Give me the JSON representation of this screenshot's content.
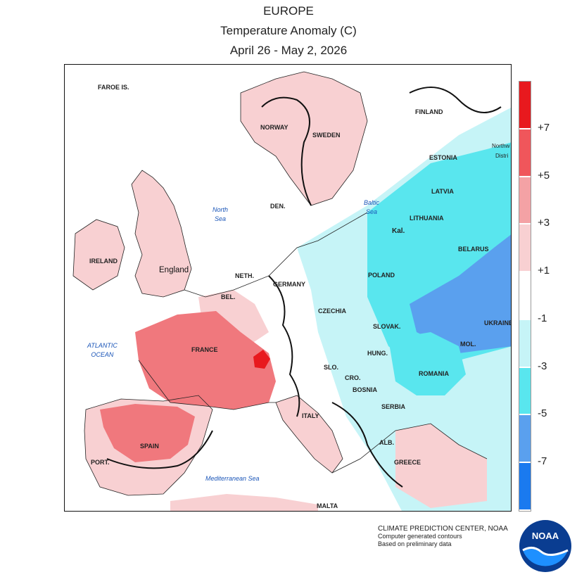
{
  "header": {
    "region": "EUROPE",
    "variable": "Temperature Anomaly (C)",
    "period": "April 26 - May 2, 2026"
  },
  "map": {
    "country_labels": [
      {
        "id": "faroe",
        "text": "FAROE IS."
      },
      {
        "id": "norway",
        "text": "NORWAY"
      },
      {
        "id": "sweden",
        "text": "SWEDEN"
      },
      {
        "id": "finland",
        "text": "FINLAND"
      },
      {
        "id": "estonia",
        "text": "ESTONIA"
      },
      {
        "id": "nw-district",
        "text": "Northw"
      },
      {
        "id": "nw-district2",
        "text": "Distri"
      },
      {
        "id": "latvia",
        "text": "LATVIA"
      },
      {
        "id": "lithuania",
        "text": "LITHUANIA"
      },
      {
        "id": "kal",
        "text": "Kal."
      },
      {
        "id": "belarus",
        "text": "BELARUS"
      },
      {
        "id": "den",
        "text": "DEN."
      },
      {
        "id": "ireland",
        "text": "IRELAND"
      },
      {
        "id": "england",
        "text": "England"
      },
      {
        "id": "neth",
        "text": "NETH."
      },
      {
        "id": "bel",
        "text": "BEL."
      },
      {
        "id": "germany",
        "text": "GERMANY"
      },
      {
        "id": "poland",
        "text": "POLAND"
      },
      {
        "id": "czechia",
        "text": "CZECHIA"
      },
      {
        "id": "slovak",
        "text": "SLOVAK."
      },
      {
        "id": "ukraine",
        "text": "UKRAINE"
      },
      {
        "id": "france",
        "text": "FRANCE"
      },
      {
        "id": "hung",
        "text": "HUNG."
      },
      {
        "id": "mol",
        "text": "MOL."
      },
      {
        "id": "romania",
        "text": "ROMANIA"
      },
      {
        "id": "slo",
        "text": "SLO."
      },
      {
        "id": "cro",
        "text": "CRO."
      },
      {
        "id": "bosnia",
        "text": "BOSNIA"
      },
      {
        "id": "serbia",
        "text": "SERBIA"
      },
      {
        "id": "italy",
        "text": "ITALY"
      },
      {
        "id": "alb",
        "text": "ALB."
      },
      {
        "id": "greece",
        "text": "GREECE"
      },
      {
        "id": "spain",
        "text": "SPAIN"
      },
      {
        "id": "port",
        "text": "PORT."
      },
      {
        "id": "malta",
        "text": "MALTA"
      }
    ],
    "sea_labels": [
      {
        "id": "north-sea",
        "text": "North\nSea"
      },
      {
        "id": "baltic-sea",
        "text": "Baltic\nSea"
      },
      {
        "id": "atlantic",
        "text": "ATLANTIC\nOCEAN"
      },
      {
        "id": "med",
        "text": "Mediterranean Sea"
      }
    ]
  },
  "legend": {
    "ticks": [
      "+7",
      "+5",
      "+3",
      "+1",
      "-1",
      "-3",
      "-5",
      "-7"
    ],
    "bins": [
      {
        "color": "#e8191e"
      },
      {
        "color": "#f0565b"
      },
      {
        "color": "#f4a2a5"
      },
      {
        "color": "#f8d0d2"
      },
      {
        "color": "#ffffff"
      },
      {
        "color": "#c6f4f7"
      },
      {
        "color": "#59e6ee"
      },
      {
        "color": "#5aa0ee"
      },
      {
        "color": "#1a7aef"
      }
    ]
  },
  "credit": {
    "line1": "CLIMATE PREDICTION CENTER, NOAA",
    "line2": "Computer generated contours",
    "line3": "Based on preliminary data"
  },
  "logo": {
    "text": "NOAA",
    "primary": "#0a3d91",
    "secondary": "#1e90ff"
  }
}
